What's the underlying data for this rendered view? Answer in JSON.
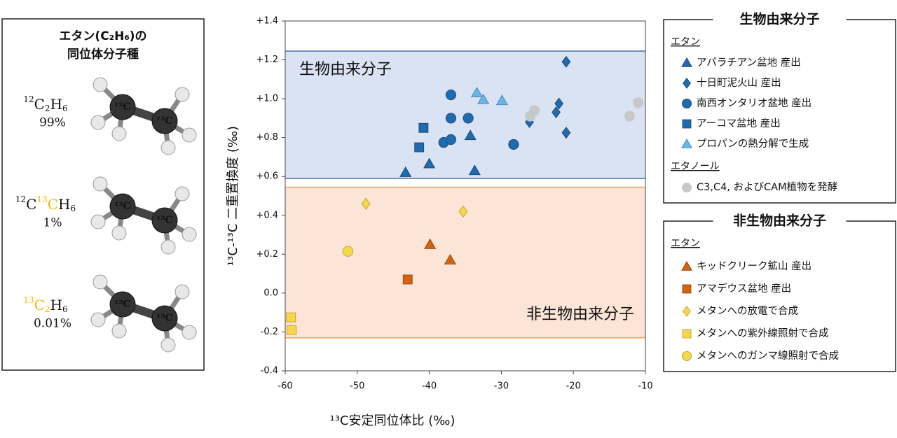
{
  "panel": {
    "title": [
      "エタン(C₂H₆)の",
      "同位体分子種"
    ],
    "isotopologues": [
      {
        "formula": [
          {
            "text": "12",
            "pos": "sup"
          },
          {
            "text": "C"
          },
          {
            "text": "2",
            "pos": "sub"
          },
          {
            "text": "H"
          },
          {
            "text": "6",
            "pos": "sub"
          }
        ],
        "abundance": "99%",
        "atoms": [
          {
            "text": "¹²C",
            "color": "#ffffff"
          },
          {
            "text": "¹²C",
            "color": "#ffffff"
          }
        ]
      },
      {
        "formula": [
          {
            "text": "12",
            "pos": "sup"
          },
          {
            "text": "C"
          },
          {
            "text": "13",
            "pos": "sup",
            "color": "#f5b800"
          },
          {
            "text": "C",
            "color": "#f5b800"
          },
          {
            "text": "H"
          },
          {
            "text": "6",
            "pos": "sub"
          }
        ],
        "abundance": "1%",
        "atoms": [
          {
            "text": "¹²C",
            "color": "#ffffff"
          },
          {
            "text": "¹³C",
            "color": "#f5b800"
          }
        ]
      },
      {
        "formula": [
          {
            "text": "13",
            "pos": "sup",
            "color": "#f5b800"
          },
          {
            "text": "C",
            "color": "#f5b800"
          },
          {
            "text": "2",
            "pos": "sub",
            "color": "#f5b800"
          },
          {
            "text": "H"
          },
          {
            "text": "6",
            "pos": "sub"
          }
        ],
        "abundance": "0.01%",
        "atoms": [
          {
            "text": "¹³C",
            "color": "#f5b800"
          },
          {
            "text": "¹³C",
            "color": "#f5b800"
          }
        ]
      }
    ]
  },
  "chart_data": {
    "type": "scatter",
    "x_label": "¹³C安定同位体比 (‰)",
    "y_label": "¹³C-¹³C 二重置換度 (‰)",
    "xlim": [
      -60,
      -10
    ],
    "xticks": [
      -60,
      -50,
      -40,
      -30,
      -20,
      -10
    ],
    "ylim": [
      -0.4,
      1.4
    ],
    "yticks": [
      {
        "value": 1.4,
        "label": "+1.4"
      },
      {
        "value": 1.2,
        "label": "+1.2"
      },
      {
        "value": 1.0,
        "label": "+1.0"
      },
      {
        "value": 0.8,
        "label": "+0.8"
      },
      {
        "value": 0.6,
        "label": "+0.6"
      },
      {
        "value": 0.4,
        "label": "+0.4"
      },
      {
        "value": 0.2,
        "label": "+0.2"
      },
      {
        "value": 0,
        "label": "0.0"
      },
      -0.2,
      -0.4
    ],
    "regions": [
      {
        "label": "生物由来分子",
        "ylim": [
          0.59,
          1.245
        ],
        "color": "#dae3f3",
        "edge": "#4a6fb0",
        "text_color": "#4a72c0"
      },
      {
        "label": "非生物由来分子",
        "ylim": [
          -0.23,
          0.545
        ],
        "color": "#fce4d6",
        "edge": "#f4a06a",
        "text_color": "#f08a40"
      }
    ],
    "series": [
      {
        "name": "アパラチアン盆地 産出",
        "group": "生物由来分子",
        "subgroup": "エタン",
        "marker": "triangle",
        "color": "#1f6bb0",
        "edge": "#173f6b",
        "x": [
          -43.3,
          -40,
          -34.3,
          -33.7
        ],
        "values": [
          0.62,
          0.665,
          0.81,
          0.63
        ]
      },
      {
        "name": "十日町泥火山 産出",
        "group": "生物由来分子",
        "subgroup": "エタン",
        "marker": "diamond",
        "color": "#1f6bb0",
        "edge": "#173f6b",
        "x": [
          -21,
          -22,
          -22.4,
          -26.1,
          -21
        ],
        "values": [
          1.19,
          0.975,
          0.93,
          0.88,
          0.825
        ]
      },
      {
        "name": "南西オンタリオ盆地 産出",
        "group": "生物由来分子",
        "subgroup": "エタン",
        "marker": "circle",
        "color": "#1f6bb0",
        "edge": "#173f6b",
        "x": [
          -37,
          -37,
          -34.6,
          -38,
          -37,
          -28.3
        ],
        "values": [
          1.02,
          0.9,
          0.9,
          0.775,
          0.79,
          0.765
        ]
      },
      {
        "name": "アーコマ盆地 産出",
        "group": "生物由来分子",
        "subgroup": "エタン",
        "marker": "square",
        "color": "#1f6bb0",
        "edge": "#173f6b",
        "x": [
          -40.8,
          -41.4
        ],
        "values": [
          0.85,
          0.75
        ]
      },
      {
        "name": "プロパンの熱分解で生成",
        "group": "生物由来分子",
        "subgroup": "エタン",
        "marker": "triangle",
        "color": "#6cb4e8",
        "edge": "#3f7fb0",
        "x": [
          -33.4,
          -32.5,
          -29.9
        ],
        "values": [
          1.03,
          0.995,
          0.99
        ]
      },
      {
        "name": "C3,C4, およびCAM植物を発酵",
        "group": "生物由来分子",
        "subgroup": "エタノール",
        "marker": "circle",
        "color": "#c8c8c8",
        "edge": "#c8c8c8",
        "x": [
          -26,
          -25.4,
          -12.2,
          -11
        ],
        "values": [
          0.91,
          0.94,
          0.91,
          0.98
        ]
      },
      {
        "name": "キッドクリーク鉱山 産出",
        "group": "非生物由来分子",
        "subgroup": "エタン",
        "marker": "triangle",
        "color": "#d5620f",
        "edge": "#8a3d08",
        "x": [
          -39.9,
          -37.1
        ],
        "values": [
          0.25,
          0.17
        ]
      },
      {
        "name": "アマデウス盆地 産出",
        "group": "非生物由来分子",
        "subgroup": "エタン",
        "marker": "square",
        "color": "#d5620f",
        "edge": "#8a3d08",
        "x": [
          -43
        ],
        "values": [
          0.07
        ]
      },
      {
        "name": "メタンへの放電で合成",
        "group": "非生物由来分子",
        "subgroup": "エタン",
        "marker": "diamond",
        "color": "#f5d84a",
        "edge": "#b8972a",
        "x": [
          -48.8,
          -35.3
        ],
        "values": [
          0.46,
          0.42
        ]
      },
      {
        "name": "メタンへの紫外線照射で合成",
        "group": "非生物由来分子",
        "subgroup": "エタン",
        "marker": "square",
        "color": "#f5d84a",
        "edge": "#b8972a",
        "x": [
          -59.2,
          -59.1
        ],
        "values": [
          -0.125,
          -0.19
        ]
      },
      {
        "name": "メタンへのガンマ線照射で合成",
        "group": "非生物由来分子",
        "subgroup": "エタン",
        "marker": "circle",
        "color": "#f5d84a",
        "edge": "#b8972a",
        "x": [
          -51.3
        ],
        "values": [
          0.215
        ]
      }
    ]
  }
}
